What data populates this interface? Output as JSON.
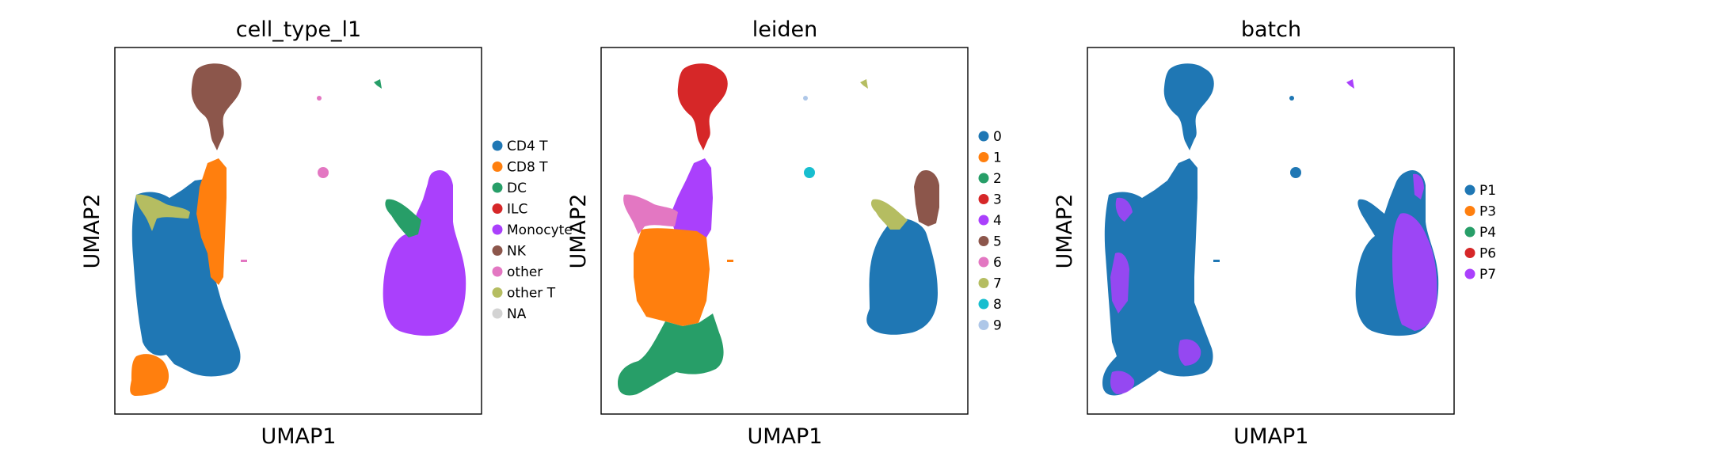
{
  "chart_data": [
    {
      "type": "scatter",
      "title": "cell_type_l1",
      "xlabel": "UMAP1",
      "ylabel": "UMAP2",
      "xticks": [],
      "yticks": [],
      "grid": false,
      "legend_position": "right",
      "legend": [
        {
          "label": "CD4 T",
          "color": "#1f77b4"
        },
        {
          "label": "CD8 T",
          "color": "#ff7f0e"
        },
        {
          "label": "DC",
          "color": "#279e68"
        },
        {
          "label": "ILC",
          "color": "#d62728"
        },
        {
          "label": "Monocyte",
          "color": "#aa40fc"
        },
        {
          "label": "NK",
          "color": "#8c564b"
        },
        {
          "label": "other",
          "color": "#e377c2"
        },
        {
          "label": "other T",
          "color": "#b5bd61"
        },
        {
          "label": "NA",
          "color": "#d3d3d3"
        }
      ]
    },
    {
      "type": "scatter",
      "title": "leiden",
      "xlabel": "UMAP1",
      "ylabel": "UMAP2",
      "xticks": [],
      "yticks": [],
      "grid": false,
      "legend_position": "right",
      "legend": [
        {
          "label": "0",
          "color": "#1f77b4"
        },
        {
          "label": "1",
          "color": "#ff7f0e"
        },
        {
          "label": "2",
          "color": "#279e68"
        },
        {
          "label": "3",
          "color": "#d62728"
        },
        {
          "label": "4",
          "color": "#aa40fc"
        },
        {
          "label": "5",
          "color": "#8c564b"
        },
        {
          "label": "6",
          "color": "#e377c2"
        },
        {
          "label": "7",
          "color": "#b5bd61"
        },
        {
          "label": "8",
          "color": "#17becf"
        },
        {
          "label": "9",
          "color": "#aec7e8"
        }
      ]
    },
    {
      "type": "scatter",
      "title": "batch",
      "xlabel": "UMAP1",
      "ylabel": "UMAP2",
      "xticks": [],
      "yticks": [],
      "grid": false,
      "legend_position": "right",
      "legend": [
        {
          "label": "P1",
          "color": "#1f77b4"
        },
        {
          "label": "P3",
          "color": "#ff7f0e"
        },
        {
          "label": "P4",
          "color": "#279e68"
        },
        {
          "label": "P6",
          "color": "#d62728"
        },
        {
          "label": "P7",
          "color": "#aa40fc"
        }
      ]
    }
  ]
}
